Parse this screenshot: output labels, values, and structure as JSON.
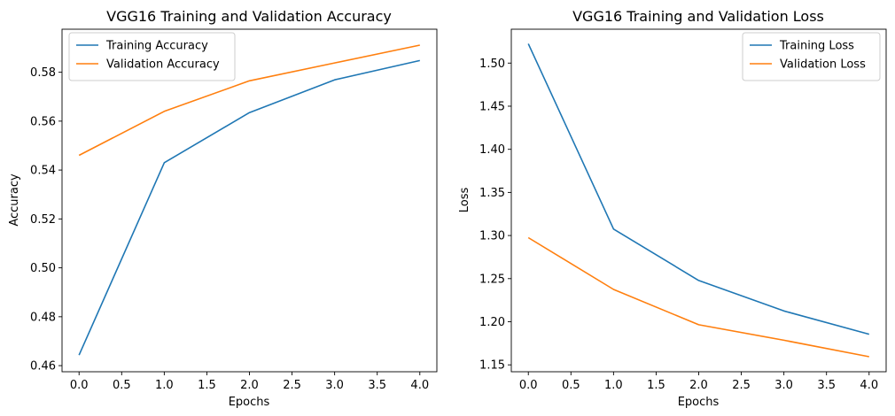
{
  "chart_data": [
    {
      "type": "line",
      "title": "VGG16 Training and Validation Accuracy",
      "xlabel": "Epochs",
      "ylabel": "Accuracy",
      "x": [
        0,
        1,
        2,
        3,
        4
      ],
      "xlim": [
        -0.2,
        4.2
      ],
      "ylim": [
        0.4575,
        0.5976
      ],
      "xticks": [
        0.0,
        0.5,
        1.0,
        1.5,
        2.0,
        2.5,
        3.0,
        3.5,
        4.0
      ],
      "xtick_labels": [
        "0.0",
        "0.5",
        "1.0",
        "1.5",
        "2.0",
        "2.5",
        "3.0",
        "3.5",
        "4.0"
      ],
      "yticks": [
        0.46,
        0.48,
        0.5,
        0.52,
        0.54,
        0.56,
        0.58
      ],
      "ytick_labels": [
        "0.46",
        "0.48",
        "0.50",
        "0.52",
        "0.54",
        "0.56",
        "0.58"
      ],
      "grid": false,
      "legend_position": "upper left",
      "series": [
        {
          "name": "Training Accuracy",
          "color": "#1f77b4",
          "values": [
            0.4643,
            0.543,
            0.5635,
            0.5769,
            0.5848
          ]
        },
        {
          "name": "Validation Accuracy",
          "color": "#ff7f0e",
          "values": [
            0.546,
            0.564,
            0.5765,
            0.5838,
            0.5911
          ]
        }
      ]
    },
    {
      "type": "line",
      "title": "VGG16 Training and Validation Loss",
      "xlabel": "Epochs",
      "ylabel": "Loss",
      "x": [
        0,
        1,
        2,
        3,
        4
      ],
      "xlim": [
        -0.2,
        4.2
      ],
      "ylim": [
        1.142,
        1.5393
      ],
      "xticks": [
        0.0,
        0.5,
        1.0,
        1.5,
        2.0,
        2.5,
        3.0,
        3.5,
        4.0
      ],
      "xtick_labels": [
        "0.0",
        "0.5",
        "1.0",
        "1.5",
        "2.0",
        "2.5",
        "3.0",
        "3.5",
        "4.0"
      ],
      "yticks": [
        1.15,
        1.2,
        1.25,
        1.3,
        1.35,
        1.4,
        1.45,
        1.5
      ],
      "ytick_labels": [
        "1.15",
        "1.20",
        "1.25",
        "1.30",
        "1.35",
        "1.40",
        "1.45",
        "1.50"
      ],
      "grid": false,
      "legend_position": "upper right",
      "series": [
        {
          "name": "Training Loss",
          "color": "#1f77b4",
          "values": [
            1.5225,
            1.3075,
            1.2478,
            1.2125,
            1.1855
          ]
        },
        {
          "name": "Validation Loss",
          "color": "#ff7f0e",
          "values": [
            1.2975,
            1.2375,
            1.1965,
            1.1785,
            1.1595
          ]
        }
      ]
    }
  ]
}
